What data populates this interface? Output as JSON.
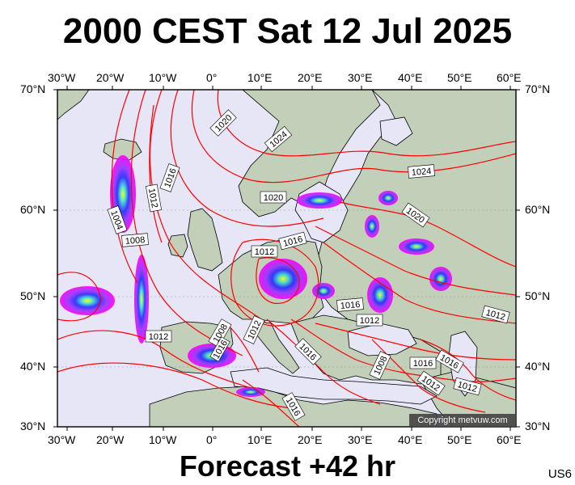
{
  "title": "2000 CEST Sat 12 Jul 2025",
  "footer": "Forecast +42 hr",
  "region_code": "US6",
  "copyright": "Copyright metvuw.com",
  "colors": {
    "sea": "#e6e6f7",
    "land": "#c2cfb9",
    "isobar": "#ff0000",
    "precip_light": "#ff00ff",
    "precip_medium": "#9a33ff",
    "precip_heavy": "#2a2aff",
    "precip_core": "#40e0d0",
    "precip_peak": "#ffff00"
  },
  "axes": {
    "longitude_labels": [
      "30°W",
      "20°W",
      "10°W",
      "0°",
      "10°E",
      "20°E",
      "30°E",
      "40°E",
      "50°E",
      "60°E"
    ],
    "latitude_labels": [
      "70°N",
      "60°N",
      "50°N",
      "40°N",
      "30°N"
    ]
  },
  "isobars": [
    {
      "value": "1020"
    },
    {
      "value": "1024"
    },
    {
      "value": "1016"
    },
    {
      "value": "1012"
    },
    {
      "value": "1004"
    },
    {
      "value": "1008"
    },
    {
      "value": "1020"
    },
    {
      "value": "1016"
    },
    {
      "value": "1012"
    },
    {
      "value": "1024"
    },
    {
      "value": "1020"
    },
    {
      "value": "1016"
    },
    {
      "value": "1012"
    },
    {
      "value": "1012"
    },
    {
      "value": "1008"
    },
    {
      "value": "1012"
    },
    {
      "value": "1016"
    },
    {
      "value": "1016"
    },
    {
      "value": "1008"
    },
    {
      "value": "1016"
    },
    {
      "value": "1016"
    },
    {
      "value": "1012"
    },
    {
      "value": "1012"
    },
    {
      "value": "1012"
    },
    {
      "value": "1016"
    }
  ]
}
